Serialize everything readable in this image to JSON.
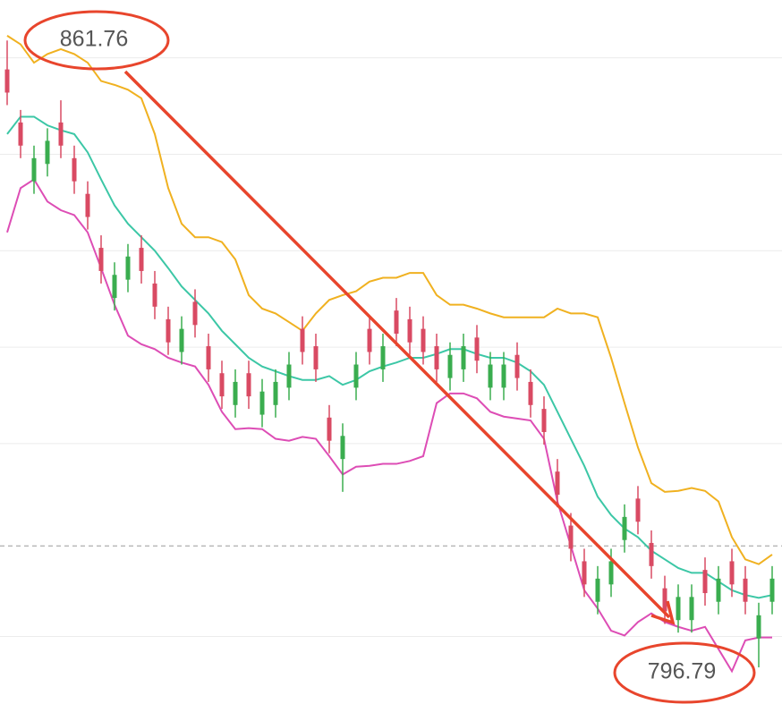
{
  "chart_data": {
    "type": "candlestick",
    "ylim": [
      793,
      866
    ],
    "gridlines": [
      860,
      850,
      840,
      830,
      820,
      800
    ],
    "reference_line": 809.4,
    "up_color": "#3aad4f",
    "down_color": "#d94a63",
    "open": [
      858.8,
      853.3,
      847.2,
      849.0,
      853.3,
      849.6,
      845.9,
      840.3,
      835.1,
      837.0,
      840.3,
      836.6,
      832.9,
      829.5,
      834.7,
      830.1,
      827.3,
      824.0,
      827.3,
      823.0,
      824.0,
      825.8,
      831.9,
      830.1,
      822.7,
      818.4,
      825.8,
      831.9,
      827.7,
      833.8,
      832.9,
      831.9,
      830.1,
      826.8,
      827.7,
      831.0,
      825.8,
      825.8,
      829.2,
      826.4,
      823.6,
      817.1,
      811.5,
      807.8,
      803.6,
      805.4,
      810.0,
      814.3,
      809.7,
      805.0,
      801.7,
      801.7,
      806.9,
      803.6,
      807.8,
      806.0,
      799.8,
      803.6
    ],
    "high": [
      861.8,
      854.6,
      850.9,
      852.7,
      855.6,
      850.9,
      847.2,
      841.6,
      838.8,
      840.7,
      841.6,
      837.9,
      834.2,
      833.2,
      836.0,
      831.4,
      828.6,
      827.7,
      828.6,
      826.7,
      827.7,
      829.5,
      833.2,
      831.4,
      824.0,
      822.1,
      829.5,
      833.2,
      831.4,
      835.1,
      834.2,
      833.2,
      831.4,
      830.5,
      831.4,
      832.3,
      829.5,
      829.5,
      830.5,
      827.7,
      824.9,
      818.4,
      812.8,
      809.1,
      807.3,
      809.1,
      813.7,
      815.6,
      811.0,
      806.3,
      805.4,
      805.4,
      808.2,
      807.3,
      809.1,
      807.3,
      803.5,
      807.3
    ],
    "low": [
      855.1,
      849.6,
      845.9,
      847.7,
      849.6,
      845.9,
      842.2,
      836.6,
      833.8,
      835.7,
      836.6,
      832.9,
      829.2,
      828.2,
      831.0,
      826.4,
      823.6,
      822.7,
      823.6,
      821.7,
      822.7,
      824.5,
      828.2,
      826.4,
      819.0,
      815.0,
      824.5,
      828.2,
      826.4,
      830.1,
      829.2,
      828.2,
      826.4,
      825.5,
      826.4,
      827.3,
      824.5,
      824.5,
      825.5,
      822.7,
      819.9,
      813.4,
      807.8,
      804.1,
      802.3,
      804.1,
      808.7,
      810.6,
      806.0,
      801.3,
      800.4,
      800.4,
      803.2,
      802.3,
      804.1,
      802.3,
      796.8,
      802.3
    ],
    "close": [
      856.4,
      850.9,
      849.6,
      851.4,
      850.9,
      847.2,
      843.5,
      837.9,
      837.5,
      839.4,
      837.9,
      834.2,
      830.5,
      831.9,
      832.3,
      827.7,
      824.9,
      826.4,
      824.9,
      825.4,
      826.4,
      828.2,
      829.5,
      827.7,
      820.3,
      820.8,
      828.2,
      829.5,
      830.1,
      831.4,
      830.5,
      829.5,
      827.7,
      829.2,
      830.1,
      828.6,
      828.2,
      828.2,
      826.8,
      824.0,
      821.2,
      814.7,
      809.1,
      805.4,
      806.0,
      807.8,
      812.4,
      811.9,
      807.3,
      802.6,
      804.1,
      804.1,
      804.5,
      806.0,
      805.4,
      803.6,
      802.2,
      806.0
    ],
    "series": [
      {
        "color": "#f0b120",
        "values": [
          862.3,
          861.4,
          859.5,
          860.4,
          860.9,
          860.4,
          859.5,
          857.6,
          857.2,
          856.7,
          855.8,
          852.1,
          846.5,
          842.8,
          841.4,
          841.4,
          840.9,
          839.1,
          835.4,
          834.0,
          833.5,
          832.6,
          831.7,
          833.5,
          834.9,
          835.4,
          835.8,
          836.8,
          837.2,
          837.2,
          837.7,
          837.7,
          835.4,
          834.4,
          834.4,
          834.0,
          833.5,
          833.1,
          833.1,
          833.1,
          833.1,
          834.0,
          833.5,
          833.5,
          833.1,
          828.9,
          824.2,
          819.6,
          815.9,
          815.0,
          815.1,
          815.4,
          815.1,
          814.0,
          810.3,
          808.0,
          807.5,
          808.5
        ]
      },
      {
        "color": "#3cc7a6",
        "values": [
          852.1,
          853.9,
          853.9,
          853.0,
          852.5,
          852.1,
          850.2,
          847.4,
          844.7,
          842.8,
          841.4,
          840.0,
          838.2,
          836.3,
          834.9,
          833.5,
          831.7,
          830.3,
          828.9,
          828.0,
          827.5,
          827.0,
          826.6,
          826.6,
          827.0,
          826.1,
          826.6,
          827.5,
          828.0,
          828.4,
          828.9,
          828.9,
          829.3,
          829.8,
          829.8,
          829.3,
          828.9,
          828.9,
          828.4,
          827.5,
          826.1,
          823.3,
          820.5,
          817.7,
          814.5,
          812.6,
          811.2,
          810.3,
          808.9,
          808.0,
          807.1,
          806.6,
          806.6,
          805.7,
          804.8,
          804.3,
          804.0,
          804.3
        ]
      },
      {
        "color": "#dd4db5",
        "values": [
          841.9,
          846.5,
          847.4,
          845.1,
          844.2,
          843.7,
          841.9,
          838.2,
          834.4,
          831.2,
          830.3,
          829.8,
          828.9,
          828.4,
          828.0,
          826.1,
          823.3,
          821.5,
          821.6,
          821.5,
          820.5,
          820.3,
          820.7,
          820.5,
          818.7,
          816.8,
          817.6,
          817.7,
          817.9,
          817.9,
          818.2,
          818.7,
          824.2,
          825.2,
          825.2,
          824.7,
          823.3,
          822.8,
          822.6,
          822.4,
          820.5,
          814.0,
          809.4,
          804.8,
          802.9,
          800.6,
          800.1,
          801.5,
          802.4,
          801.5,
          801.0,
          800.6,
          801.0,
          798.7,
          796.4,
          799.6,
          799.9,
          799.9
        ]
      }
    ],
    "annotations": [
      "861.76",
      "796.79"
    ]
  }
}
